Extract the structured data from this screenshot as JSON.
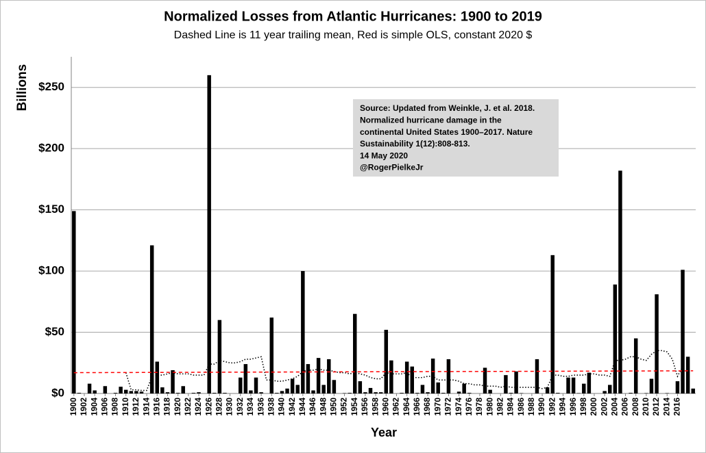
{
  "chart_data": {
    "type": "bar",
    "title": "Normalized Losses from Atlantic Hurricanes: 1900 to 2019",
    "subtitle": "Dashed Line is 11 year trailing mean, Red is simple OLS, constant 2020 $",
    "y_label": "Billions",
    "x_label": "Year",
    "annotation": [
      "Source: Updated from Weinkle, J. et al. 2018.",
      "Normalized hurricane damage in the",
      "continental United States 1900–2017.  Nature",
      "Sustainability 1(12):808-813.",
      "14 May 2020",
      "@RogerPielkeJr"
    ],
    "x": [
      1900,
      1901,
      1902,
      1903,
      1904,
      1905,
      1906,
      1907,
      1908,
      1909,
      1910,
      1911,
      1912,
      1913,
      1914,
      1915,
      1916,
      1917,
      1918,
      1919,
      1920,
      1921,
      1922,
      1923,
      1924,
      1925,
      1926,
      1927,
      1928,
      1929,
      1930,
      1931,
      1932,
      1933,
      1934,
      1935,
      1936,
      1937,
      1938,
      1939,
      1940,
      1941,
      1942,
      1943,
      1944,
      1945,
      1946,
      1947,
      1948,
      1949,
      1950,
      1951,
      1952,
      1953,
      1954,
      1955,
      1956,
      1957,
      1958,
      1959,
      1960,
      1961,
      1962,
      1963,
      1964,
      1965,
      1966,
      1967,
      1968,
      1969,
      1970,
      1971,
      1972,
      1973,
      1974,
      1975,
      1976,
      1977,
      1978,
      1979,
      1980,
      1981,
      1982,
      1983,
      1984,
      1985,
      1986,
      1987,
      1988,
      1989,
      1990,
      1991,
      1992,
      1993,
      1994,
      1995,
      1996,
      1997,
      1998,
      1999,
      2000,
      2001,
      2002,
      2003,
      2004,
      2005,
      2006,
      2007,
      2008,
      2009,
      2010,
      2011,
      2012,
      2013,
      2014,
      2015,
      2016,
      2017,
      2018,
      2019
    ],
    "series": [
      {
        "name": "Normalized losses",
        "color": "#000000",
        "values": [
          149,
          0.5,
          0,
          8,
          2.5,
          0,
          6,
          0,
          0.5,
          5.5,
          3,
          2,
          2,
          1.5,
          0,
          121,
          26,
          5,
          1,
          19,
          0.5,
          6,
          0,
          0.5,
          1,
          0,
          260,
          0.5,
          60,
          0.5,
          0,
          0,
          13,
          24,
          2.5,
          13,
          1,
          0,
          62,
          0.5,
          2,
          4,
          12,
          7,
          100,
          24,
          2.5,
          29,
          7,
          28,
          11,
          0,
          0.3,
          0.5,
          65,
          10,
          1,
          4.5,
          1,
          1,
          52,
          27,
          0,
          0.5,
          26,
          22,
          0.5,
          7,
          1,
          28.5,
          9,
          0.5,
          28,
          0,
          1.5,
          8,
          0.5,
          0,
          0,
          21,
          3,
          0,
          0,
          15,
          0.5,
          18,
          0.3,
          0,
          0,
          28,
          0,
          5,
          113,
          0.5,
          0,
          13,
          13,
          0.3,
          8,
          17,
          0,
          0,
          2,
          7,
          89,
          182,
          0,
          0.5,
          45,
          0,
          0.3,
          12,
          81,
          0,
          0.3,
          0,
          10,
          101,
          30,
          4
        ]
      },
      {
        "name": "11 year trailing mean",
        "color": "#000000",
        "axis": "y",
        "style": "dotted",
        "values": [
          null,
          null,
          null,
          null,
          null,
          null,
          null,
          null,
          null,
          null,
          17,
          3,
          3,
          2.5,
          2.5,
          14,
          15,
          15,
          16,
          17,
          16,
          16,
          16,
          15,
          15,
          15,
          24,
          24,
          27,
          26,
          25,
          25,
          26,
          28,
          28,
          29,
          30,
          11,
          11,
          10,
          10,
          11,
          12,
          14,
          18,
          19,
          19,
          20,
          19,
          19,
          18,
          17,
          17,
          16,
          17,
          16,
          15,
          13,
          12,
          12,
          17,
          16,
          16,
          16,
          17,
          13,
          13,
          13,
          14,
          14,
          11,
          11,
          11,
          11,
          10,
          8,
          8,
          7,
          7,
          6,
          6,
          6,
          5,
          6,
          5,
          5,
          5,
          5,
          5,
          5,
          4,
          5,
          15,
          15,
          14,
          14,
          15,
          15,
          15,
          16,
          16,
          15,
          15,
          14,
          27,
          27,
          28,
          30,
          30,
          28,
          27,
          32,
          35,
          35,
          34,
          28,
          14,
          22,
          null,
          null
        ]
      }
    ],
    "ols": {
      "name": "simple OLS",
      "color": "#ff0000",
      "x": [
        1900,
        2019
      ],
      "values": [
        17,
        18.5
      ]
    },
    "xlim": [
      1899.5,
      2019.5
    ],
    "xticks": [
      1900,
      1902,
      1904,
      1906,
      1908,
      1910,
      1912,
      1914,
      1916,
      1918,
      1920,
      1922,
      1924,
      1926,
      1928,
      1930,
      1932,
      1934,
      1936,
      1938,
      1940,
      1942,
      1944,
      1946,
      1948,
      1950,
      1952,
      1954,
      1956,
      1958,
      1960,
      1962,
      1964,
      1966,
      1968,
      1970,
      1972,
      1974,
      1976,
      1978,
      1980,
      1982,
      1984,
      1986,
      1988,
      1990,
      1992,
      1994,
      1996,
      1998,
      2000,
      2002,
      2004,
      2006,
      2008,
      2010,
      2012,
      2014,
      2016
    ],
    "ylim": [
      0,
      275
    ],
    "yticks": [
      {
        "value": 0,
        "label": "$0"
      },
      {
        "value": 50,
        "label": "$50"
      },
      {
        "value": 100,
        "label": "$100"
      },
      {
        "value": 150,
        "label": "$150"
      },
      {
        "value": 200,
        "label": "$200"
      },
      {
        "value": 250,
        "label": "$250"
      }
    ],
    "grid": true
  }
}
